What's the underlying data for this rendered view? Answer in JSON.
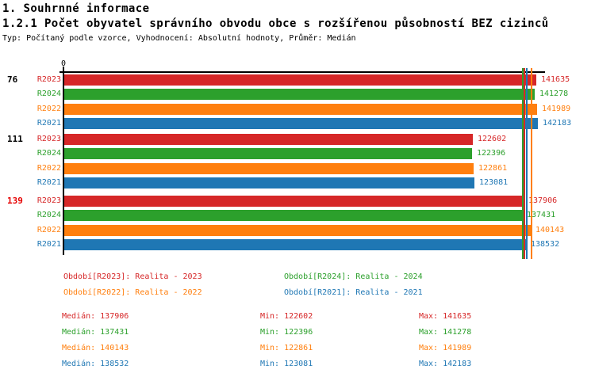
{
  "header": {
    "title": "1. Souhrnné informace",
    "subtitle": "1.2.1 Počet obyvatel správního obvodu obce s rozšířenou působností BEZ cizinců",
    "meta": "Typ: Počítaný podle vzorce, Vyhodnocení: Absolutní hodnoty, Průměr: Medián"
  },
  "colors": {
    "R2023": "#d62728",
    "R2024": "#2ca02c",
    "R2022": "#ff7f0e",
    "R2021": "#1f77b4",
    "axis": "#000000",
    "highlight_category": "#e60000"
  },
  "chart_data": {
    "type": "bar",
    "orientation": "horizontal",
    "title": "1.2.1 Počet obyvatel správního obvodu obce s rozšířenou působností BEZ cizinců",
    "xlabel": "",
    "ylabel": "",
    "x_axis": {
      "zero_label": "0",
      "min": 0,
      "max": 142183
    },
    "grid": false,
    "legend_position": "bottom",
    "series": [
      "R2023",
      "R2024",
      "R2022",
      "R2021"
    ],
    "categories": [
      "76",
      "111",
      "139"
    ],
    "category_label_colors": [
      "#000000",
      "#000000",
      "#e60000"
    ],
    "groups": [
      {
        "category": "76",
        "values": [
          141635,
          141278,
          141989,
          142183
        ]
      },
      {
        "category": "111",
        "values": [
          122602,
          122396,
          122861,
          123081
        ]
      },
      {
        "category": "139",
        "values": [
          137906,
          137431,
          140143,
          138532
        ]
      }
    ],
    "median_lines": [
      {
        "series": "R2024",
        "value": 137431
      },
      {
        "series": "R2023",
        "value": 137906
      },
      {
        "series": "R2021",
        "value": 138532
      },
      {
        "series": "R2022",
        "value": 140143
      }
    ]
  },
  "legend": [
    {
      "series": "R2023",
      "label": "Období[R2023]: Realita - 2023"
    },
    {
      "series": "R2024",
      "label": "Období[R2024]: Realita - 2024"
    },
    {
      "series": "R2022",
      "label": "Období[R2022]: Realita - 2022"
    },
    {
      "series": "R2021",
      "label": "Období[R2021]: Realita - 2021"
    }
  ],
  "stats": {
    "median_prefix": "Medián: ",
    "min_prefix": "Min: ",
    "max_prefix": "Max: ",
    "rows": [
      {
        "series": "R2023",
        "median": "137906",
        "min": "122602",
        "max": "141635"
      },
      {
        "series": "R2024",
        "median": "137431",
        "min": "122396",
        "max": "141278"
      },
      {
        "series": "R2022",
        "median": "140143",
        "min": "122861",
        "max": "141989"
      },
      {
        "series": "R2021",
        "median": "138532",
        "min": "123081",
        "max": "142183"
      }
    ]
  }
}
